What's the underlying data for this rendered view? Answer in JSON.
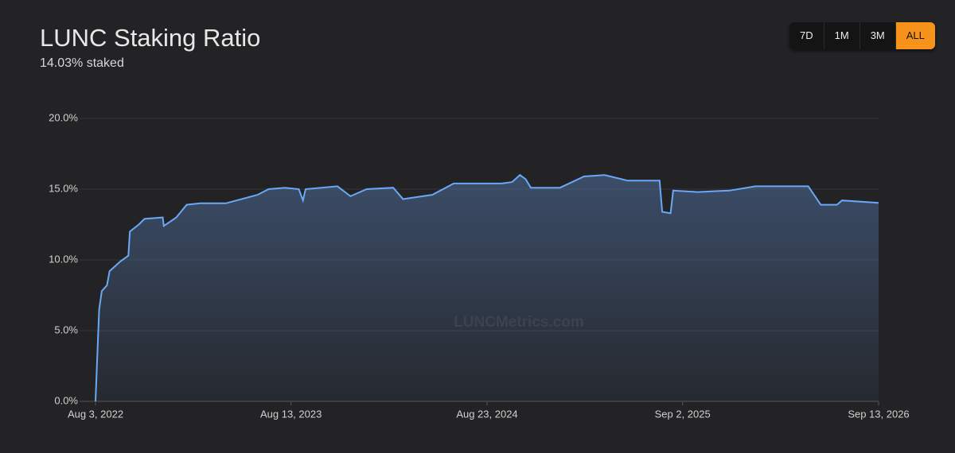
{
  "chart_data": {
    "type": "line",
    "title": "LUNC Staking Ratio",
    "subtitle": "14.03% staked",
    "watermark": "LUNCMetrics.com",
    "range_buttons": [
      "7D",
      "1M",
      "3M",
      "ALL"
    ],
    "active_button": "ALL",
    "color": "#6aa8f5",
    "grid": true,
    "xlim": [
      "2022-08-03",
      "2026-09-13"
    ],
    "xticks": [
      {
        "value": "2022-08-03",
        "label": "Aug 3, 2022"
      },
      {
        "value": "2023-08-13",
        "label": "Aug 13, 2023"
      },
      {
        "value": "2024-08-23",
        "label": "Aug 23, 2024"
      },
      {
        "value": "2025-09-02",
        "label": "Sep 2, 2025"
      },
      {
        "value": "2026-09-13",
        "label": "Sep 13, 2026"
      }
    ],
    "ylim": [
      0,
      20
    ],
    "yticks": [
      {
        "value": 0,
        "label": "0.0%"
      },
      {
        "value": 5,
        "label": "5.0%"
      },
      {
        "value": 10,
        "label": "10.0%"
      },
      {
        "value": 15,
        "label": "15.0%"
      },
      {
        "value": 20,
        "label": "20.0%"
      }
    ],
    "x": [
      "2022-08-03",
      "2022-08-10",
      "2022-08-15",
      "2022-08-25",
      "2022-08-30",
      "2022-09-20",
      "2022-10-05",
      "2022-10-08",
      "2022-10-25",
      "2022-11-05",
      "2022-12-10",
      "2022-12-12",
      "2023-01-05",
      "2023-01-25",
      "2023-02-20",
      "2023-04-10",
      "2023-06-10",
      "2023-07-01",
      "2023-08-01",
      "2023-08-28",
      "2023-09-05",
      "2023-09-10",
      "2023-11-10",
      "2023-12-05",
      "2024-01-05",
      "2024-02-25",
      "2024-03-15",
      "2024-05-10",
      "2024-06-20",
      "2024-09-20",
      "2024-10-10",
      "2024-10-25",
      "2024-11-05",
      "2024-11-15",
      "2025-01-10",
      "2025-02-25",
      "2025-04-05",
      "2025-05-20",
      "2025-07-20",
      "2025-07-25",
      "2025-08-10",
      "2025-08-15",
      "2025-10-01",
      "2025-12-01",
      "2026-01-20",
      "2026-05-01",
      "2026-05-25",
      "2026-06-25",
      "2026-07-05",
      "2026-09-13"
    ],
    "values": [
      0,
      6.5,
      7.8,
      8.2,
      9.2,
      9.9,
      10.3,
      12.0,
      12.5,
      12.9,
      13.0,
      12.4,
      13.0,
      13.9,
      14.0,
      14.0,
      14.6,
      15.0,
      15.1,
      15.0,
      14.2,
      15.0,
      15.2,
      14.5,
      15.0,
      15.1,
      14.3,
      14.6,
      15.4,
      15.4,
      15.5,
      16.0,
      15.7,
      15.1,
      15.1,
      15.9,
      16.0,
      15.6,
      15.6,
      13.4,
      13.3,
      14.9,
      14.8,
      14.9,
      15.2,
      15.2,
      13.9,
      13.9,
      14.2,
      14.03
    ]
  }
}
